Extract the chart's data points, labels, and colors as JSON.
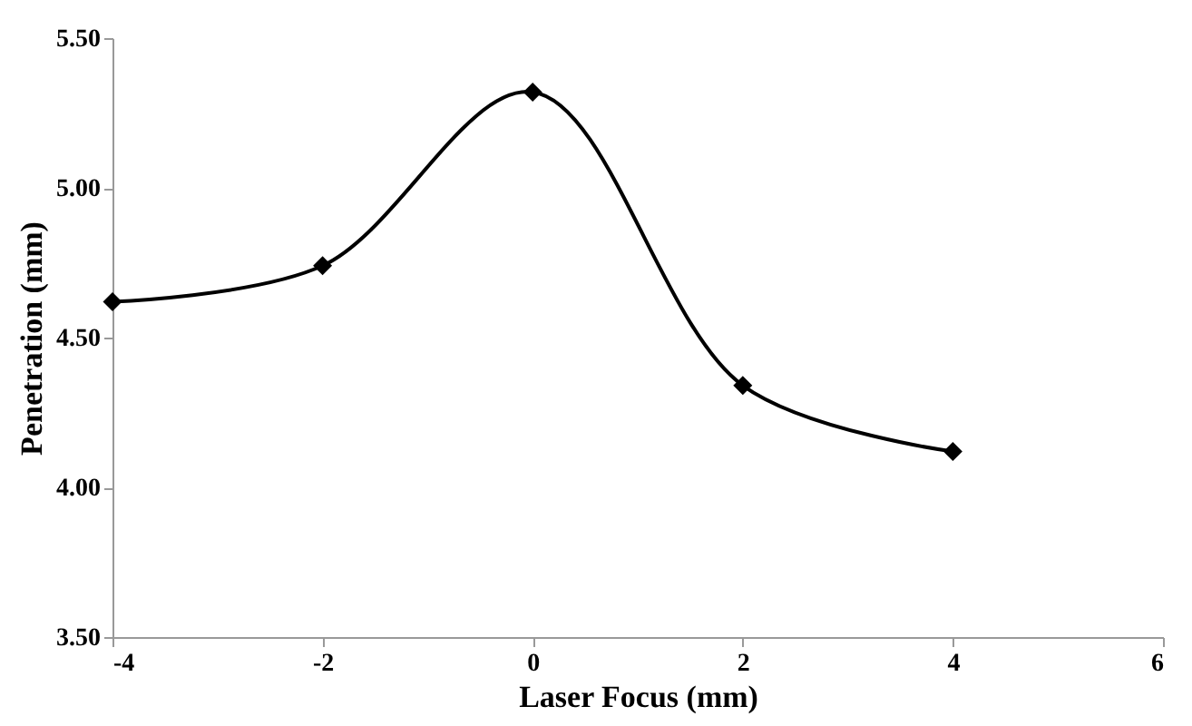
{
  "chart_data": {
    "type": "line",
    "xlabel": "Laser Focus (mm)",
    "ylabel": "Penetration (mm)",
    "x": [
      -4,
      -2,
      0,
      2,
      4
    ],
    "series": [
      {
        "color": "#000000",
        "values": [
          4.62,
          4.74,
          5.32,
          4.34,
          4.12
        ]
      }
    ],
    "xlim": [
      -4,
      6
    ],
    "xticks": [
      -4,
      -2,
      0,
      2,
      4,
      6
    ],
    "ylim": [
      3.5,
      5.5
    ],
    "yticks": [
      {
        "value": 3.5,
        "label": "3.50"
      },
      {
        "value": 4.0,
        "label": "4.00"
      },
      {
        "value": 4.5,
        "label": "4.50"
      },
      {
        "value": 5.0,
        "label": "5.00"
      },
      {
        "value": 5.5,
        "label": "5.50"
      }
    ],
    "grid": false,
    "marker": "diamond",
    "line_style": "solid"
  }
}
